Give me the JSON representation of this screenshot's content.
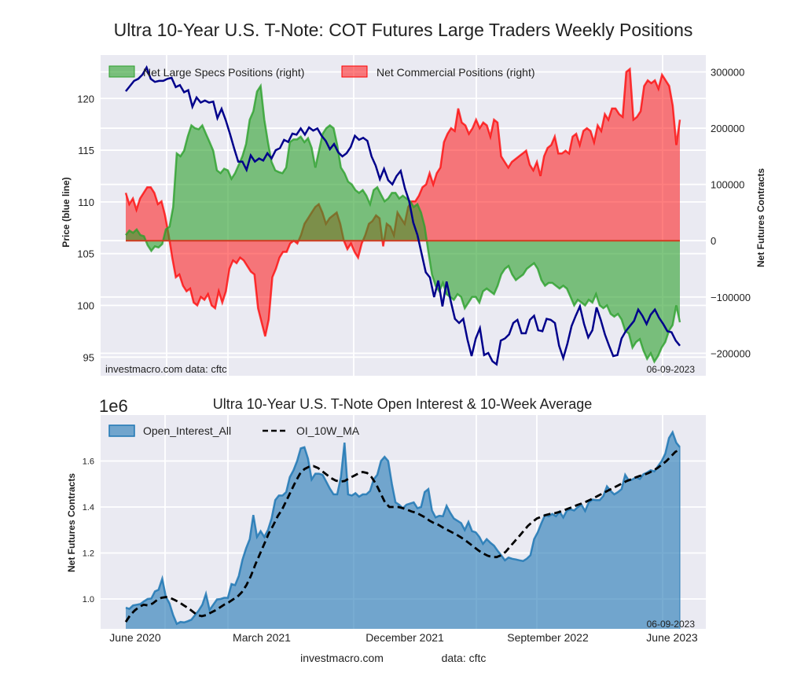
{
  "chart_data": [
    {
      "type": "line+area",
      "title": "Ultra 10-Year U.S. T-Note: COT Futures Large Traders Weekly Positions",
      "ylabel": "Price (blue line)",
      "ylabel_right": "Net Futures Contracts",
      "ylim": [
        93.2,
        124.2
      ],
      "ylim_right": [
        -240000,
        330000
      ],
      "yticks": [
        95,
        100,
        105,
        110,
        115,
        120
      ],
      "yticks_right": [
        -200000,
        -100000,
        0,
        100000,
        200000,
        300000
      ],
      "yticklabels_right": [
        "−200000",
        "−100000",
        "0",
        "100000",
        "200000",
        "300000"
      ],
      "grid": true,
      "legend_position": "top-left",
      "annotation_left": "investmacro.com    data: cftc",
      "annotation_right": "06-09-2023",
      "x_range": [
        "2020-06-02",
        "2023-06-06"
      ],
      "series": [
        {
          "name": "Price",
          "axis": "left",
          "color": "#00008b",
          "values": [
            120.7,
            121.2,
            121.7,
            121.9,
            122.3,
            123.0,
            121.9,
            121.6,
            121.7,
            121.7,
            121.9,
            122.0,
            121.1,
            121.3,
            120.6,
            120.8,
            119.2,
            120.1,
            119.6,
            119.8,
            119.6,
            119.7,
            118.1,
            119.0,
            117.9,
            116.6,
            115.2,
            113.9,
            113.9,
            113.1,
            114.5,
            113.9,
            114.2,
            114.0,
            114.7,
            114.2,
            115.0,
            115.2,
            116.0,
            115.8,
            116.6,
            116.5,
            117.1,
            116.5,
            117.2,
            116.9,
            117.1,
            116.4,
            115.9,
            115.1,
            115.6,
            114.8,
            114.4,
            114.7,
            115.3,
            116.4,
            116.0,
            116.2,
            115.9,
            114.4,
            113.5,
            112.2,
            113.2,
            112.1,
            111.7,
            112.5,
            113.0,
            111.3,
            110.1,
            108.0,
            106.8,
            105.0,
            103.2,
            102.7,
            100.8,
            102.4,
            99.9,
            102.3,
            100.4,
            98.7,
            98.3,
            98.7,
            96.7,
            95.1,
            96.8,
            97.8,
            95.2,
            95.4,
            94.6,
            94.3,
            96.6,
            96.8,
            97.2,
            98.3,
            98.6,
            97.3,
            97.3,
            98.6,
            99.0,
            97.6,
            97.5,
            98.7,
            98.6,
            98.3,
            96.1,
            94.9,
            96.3,
            98.0,
            99.0,
            99.9,
            98.2,
            96.9,
            97.6,
            99.8,
            98.6,
            97.2,
            96.1,
            95.1,
            95.2,
            96.8,
            97.5,
            98.0,
            98.5,
            99.6,
            99.0,
            98.2,
            99.1,
            99.6,
            98.8,
            98.2,
            97.5,
            97.4,
            96.6,
            96.1
          ],
          "gaps": []
        },
        {
          "name": "Net Large Specs Positions (right)",
          "axis": "right",
          "color": "#2ca02c",
          "values": [
            10000,
            18000,
            14000,
            20000,
            10000,
            8000,
            -8000,
            -18000,
            -10000,
            -12000,
            -6000,
            20000,
            25000,
            60000,
            155000,
            150000,
            160000,
            185000,
            205000,
            200000,
            198000,
            205000,
            190000,
            175000,
            160000,
            125000,
            120000,
            128000,
            125000,
            110000,
            120000,
            135000,
            150000,
            172000,
            215000,
            230000,
            265000,
            275000,
            215000,
            175000,
            140000,
            125000,
            122000,
            120000,
            130000,
            175000,
            180000,
            180000,
            185000,
            175000,
            182000,
            165000,
            130000,
            160000,
            190000,
            200000,
            205000,
            200000,
            170000,
            130000,
            120000,
            105000,
            100000,
            90000,
            85000,
            90000,
            80000,
            65000,
            90000,
            95000,
            82000,
            70000,
            75000,
            85000,
            85000,
            75000,
            80000,
            75000,
            70000,
            60000,
            65000,
            50000,
            25000,
            -20000,
            -60000,
            -80000,
            -90000,
            -75000,
            -95000,
            -100000,
            -105000,
            -95000,
            -100000,
            -120000,
            -110000,
            -100000,
            -100000,
            -110000,
            -90000,
            -85000,
            -90000,
            -95000,
            -80000,
            -60000,
            -50000,
            -45000,
            -60000,
            -70000,
            -65000,
            -60000,
            -50000,
            -45000,
            -40000,
            -50000,
            -70000,
            -80000,
            -75000,
            -75000,
            -80000,
            -85000,
            -80000,
            -85000,
            -100000,
            -115000,
            -105000,
            -110000,
            -115000,
            -105000,
            -110000,
            -95000,
            -115000,
            -120000,
            -115000,
            -130000,
            -135000,
            -130000,
            -140000,
            -160000,
            -165000,
            -190000,
            -180000,
            -175000,
            -195000,
            -210000,
            -200000,
            -215000,
            -205000,
            -190000,
            -180000,
            -160000,
            -150000,
            -115000,
            -145000
          ],
          "gaps": []
        },
        {
          "name": "Net Commercial Positions (right)",
          "axis": "right",
          "color": "#ff0000",
          "values": [
            85000,
            65000,
            75000,
            55000,
            75000,
            85000,
            95000,
            95000,
            85000,
            65000,
            70000,
            45000,
            10000,
            -30000,
            -65000,
            -60000,
            -80000,
            -90000,
            -85000,
            -110000,
            -115000,
            -100000,
            -105000,
            -95000,
            -115000,
            -120000,
            -90000,
            -110000,
            -90000,
            -50000,
            -35000,
            -40000,
            -30000,
            -35000,
            -45000,
            -55000,
            -60000,
            -120000,
            -145000,
            -170000,
            -140000,
            -65000,
            -50000,
            -30000,
            -20000,
            -20000,
            -5000,
            0,
            -5000,
            10000,
            30000,
            40000,
            50000,
            60000,
            65000,
            50000,
            30000,
            40000,
            45000,
            50000,
            30000,
            0,
            -15000,
            -5000,
            -20000,
            -30000,
            -5000,
            10000,
            30000,
            35000,
            45000,
            40000,
            -10000,
            30000,
            25000,
            10000,
            50000,
            40000,
            30000,
            60000,
            70000,
            70000,
            80000,
            95000,
            100000,
            120000,
            100000,
            120000,
            130000,
            175000,
            190000,
            200000,
            195000,
            235000,
            210000,
            205000,
            190000,
            200000,
            215000,
            200000,
            210000,
            205000,
            185000,
            215000,
            210000,
            150000,
            140000,
            130000,
            140000,
            145000,
            150000,
            155000,
            160000,
            135000,
            125000,
            140000,
            115000,
            150000,
            165000,
            170000,
            185000,
            155000,
            155000,
            160000,
            155000,
            185000,
            190000,
            170000,
            195000,
            200000,
            195000,
            175000,
            205000,
            195000,
            225000,
            215000,
            235000,
            235000,
            225000,
            220000,
            300000,
            305000,
            215000,
            220000,
            230000,
            275000,
            285000,
            280000,
            285000,
            270000,
            295000,
            285000,
            275000,
            240000,
            170000,
            215000
          ],
          "gaps": []
        }
      ],
      "legend": [
        "Net Large Specs Positions (right)",
        "Net Commercial Positions (right)"
      ]
    },
    {
      "type": "area+line",
      "title": "Ultra 10-Year U.S. T-Note Open Interest & 10-Week Average",
      "offset_label": "1e6",
      "ylabel": "Net Futures Contracts",
      "ylim": [
        0.87,
        1.8
      ],
      "yticks": [
        1.0,
        1.2,
        1.4,
        1.6
      ],
      "xticklabels": [
        "June 2020",
        "March 2021",
        "December 2021",
        "September 2022",
        "June 2023"
      ],
      "grid": true,
      "legend_position": "top-left",
      "annotation_right": "06-09-2023",
      "footer": [
        "investmacro.com",
        "data: cftc"
      ],
      "series": [
        {
          "name": "Open_Interest_All",
          "color": "#1f77b4",
          "values": [
            0.962,
            0.957,
            0.972,
            0.975,
            0.978,
            0.99,
            1.0,
            1.002,
            1.033,
            1.04,
            1.088,
            1.01,
            0.98,
            0.93,
            0.892,
            0.9,
            0.898,
            0.903,
            0.91,
            0.93,
            0.95,
            0.975,
            1.022,
            0.952,
            0.975,
            0.998,
            1.0,
            1.005,
            1.005,
            1.065,
            1.06,
            1.1,
            1.17,
            1.22,
            1.26,
            1.365,
            1.27,
            1.295,
            1.27,
            1.3,
            1.35,
            1.43,
            1.45,
            1.45,
            1.465,
            1.53,
            1.56,
            1.6,
            1.655,
            1.66,
            1.61,
            1.52,
            1.545,
            1.545,
            1.54,
            1.51,
            1.48,
            1.455,
            1.455,
            1.53,
            1.68,
            1.455,
            1.45,
            1.46,
            1.445,
            1.455,
            1.455,
            1.47,
            1.52,
            1.54,
            1.6,
            1.618,
            1.6,
            1.5,
            1.42,
            1.41,
            1.395,
            1.41,
            1.415,
            1.42,
            1.395,
            1.4,
            1.465,
            1.478,
            1.385,
            1.355,
            1.362,
            1.36,
            1.405,
            1.375,
            1.35,
            1.34,
            1.33,
            1.3,
            1.335,
            1.295,
            1.29,
            1.27,
            1.24,
            1.26,
            1.245,
            1.232,
            1.21,
            1.19,
            1.168,
            1.18,
            1.175,
            1.172,
            1.168,
            1.165,
            1.175,
            1.19,
            1.26,
            1.29,
            1.33,
            1.365,
            1.36,
            1.37,
            1.36,
            1.38,
            1.355,
            1.385,
            1.39,
            1.385,
            1.4,
            1.41,
            1.383,
            1.42,
            1.432,
            1.43,
            1.43,
            1.448,
            1.49,
            1.47,
            1.455,
            1.465,
            1.478,
            1.54,
            1.515,
            1.52,
            1.53,
            1.522,
            1.543,
            1.55,
            1.56,
            1.555,
            1.578,
            1.6,
            1.632,
            1.7,
            1.725,
            1.68,
            1.66
          ],
          "gaps": []
        },
        {
          "name": "OI_10W_MA",
          "color": "#000000",
          "style": "dashed",
          "values": [
            0.9,
            0.93,
            0.95,
            0.965,
            0.975,
            0.972,
            0.98,
            0.995,
            1.005,
            1.008,
            1.004,
            0.995,
            0.985,
            0.972,
            0.96,
            0.945,
            0.93,
            0.925,
            0.93,
            0.94,
            0.95,
            0.962,
            0.975,
            0.985,
            0.998,
            1.01,
            1.03,
            1.06,
            1.1,
            1.15,
            1.195,
            1.24,
            1.285,
            1.32,
            1.36,
            1.39,
            1.43,
            1.47,
            1.51,
            1.545,
            1.565,
            1.575,
            1.578,
            1.57,
            1.555,
            1.54,
            1.525,
            1.515,
            1.51,
            1.513,
            1.525,
            1.535,
            1.545,
            1.552,
            1.548,
            1.53,
            1.5,
            1.46,
            1.42,
            1.4,
            1.4,
            1.4,
            1.395,
            1.388,
            1.38,
            1.375,
            1.365,
            1.355,
            1.34,
            1.33,
            1.322,
            1.31,
            1.3,
            1.29,
            1.28,
            1.268,
            1.255,
            1.24,
            1.225,
            1.21,
            1.198,
            1.188,
            1.182,
            1.182,
            1.19,
            1.205,
            1.228,
            1.25,
            1.272,
            1.295,
            1.318,
            1.335,
            1.35,
            1.358,
            1.365,
            1.37,
            1.373,
            1.378,
            1.385,
            1.393,
            1.4,
            1.408,
            1.415,
            1.423,
            1.432,
            1.442,
            1.452,
            1.462,
            1.472,
            1.482,
            1.492,
            1.502,
            1.512,
            1.52,
            1.528,
            1.535,
            1.54,
            1.548,
            1.558,
            1.57,
            1.585,
            1.6,
            1.62,
            1.64,
            1.65
          ],
          "gaps": []
        }
      ],
      "legend": [
        "Open_Interest_All",
        "OI_10W_MA"
      ]
    }
  ]
}
